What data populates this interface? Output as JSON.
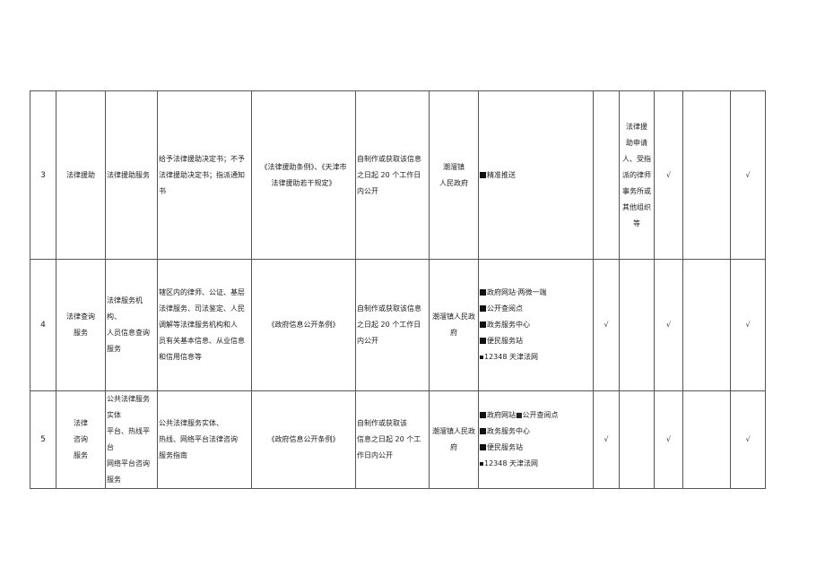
{
  "rows": [
    {
      "no": "3",
      "item": [
        "法律援助"
      ],
      "subitem": [
        "法律援助服务"
      ],
      "content": [
        "给予法律援助决定书；不予",
        "法律援助决定书；指派通知",
        "书"
      ],
      "basis": [
        "《法律援助条例》、《天津市",
        "法律援助若干规定》"
      ],
      "time": [
        "自制作或获取该信息",
        "之日起 20 个工作日",
        "内公开"
      ],
      "subject": [
        "潮溜镇",
        "人民政府"
      ],
      "channels": [
        {
          "text": "精准推送",
          "mark": "big"
        }
      ],
      "c1": "",
      "c2": [
        "法律援",
        "助申请",
        "人、受指",
        "派的律师",
        "事务所或",
        "其他组织",
        "等"
      ],
      "c3": "√",
      "c4": "",
      "c5": "√"
    },
    {
      "no": "4",
      "item": [
        "法律查询",
        "服务"
      ],
      "subitem": [
        "法律服务机构、",
        "人员信息查询",
        "服务"
      ],
      "content": [
        "辖区内的律师、公证、基层",
        "法律服务、司法鉴定、人民",
        "调解等法律服务机构和人",
        "员有关基本信息、从业信息",
        "和信用信息等"
      ],
      "basis": [
        "《政府信息公开条例》"
      ],
      "time": [
        "自制作或获取该信息",
        "之日起 20 个工作日",
        "内公开"
      ],
      "subject": [
        "潮溜镇人民政",
        "府"
      ],
      "channels": [
        {
          "text": "政府网站·两微一端",
          "mark": "big"
        },
        {
          "text": "公开查阅点",
          "mark": "big"
        },
        {
          "text": "政务服务中心",
          "mark": "big"
        },
        {
          "text": "便民服务站",
          "mark": "big"
        },
        {
          "text": "12348 天津法网",
          "mark": "small"
        }
      ],
      "c1": "√",
      "c2": [],
      "c3": "√",
      "c4": "",
      "c5": "√"
    },
    {
      "no": "5",
      "item": [
        "法律",
        "咨询",
        "服务"
      ],
      "subitem": [
        "公共法律服务",
        "实体",
        "平台、热线平台",
        "网络平台咨询",
        "服务"
      ],
      "content": [
        "公共法律服务实体、",
        "热线、网络平台法律咨询",
        "服务指南"
      ],
      "basis": [
        "《政府信息公开条例》"
      ],
      "time": [
        "自制作或获取该",
        "信息之日起 20 个工",
        "作日内公开"
      ],
      "subject": [
        "潮溜镇人民政",
        "府"
      ],
      "channels": [
        {
          "text": "政府网站■公开查阅点",
          "mark": "big"
        },
        {
          "text": "政务服务中心",
          "mark": "big"
        },
        {
          "text": "便民服务站",
          "mark": "big"
        },
        {
          "text": "12348 天津法网",
          "mark": "small"
        }
      ],
      "c1": "√",
      "c2": [],
      "c3": "√",
      "c4": "",
      "c5": "√"
    }
  ]
}
